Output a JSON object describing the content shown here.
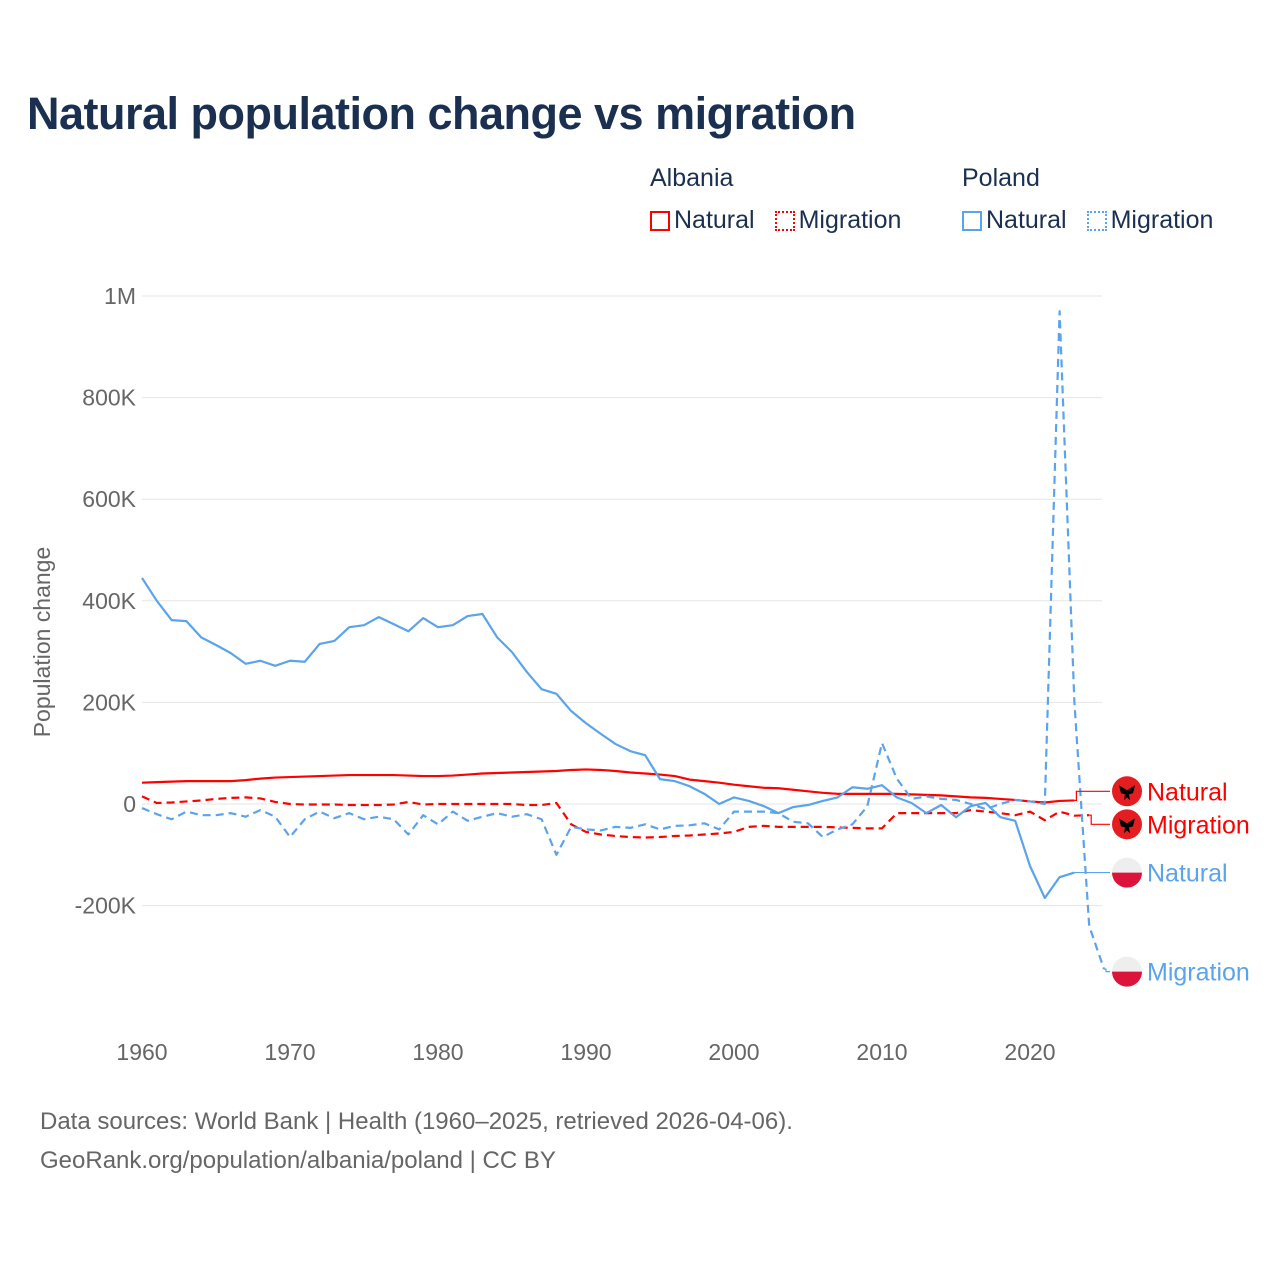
{
  "title": "Natural population change vs migration",
  "legend": {
    "groups": [
      {
        "name": "Albania",
        "color": "#ff0000",
        "items": [
          {
            "label": "Natural",
            "style": "solid"
          },
          {
            "label": "Migration",
            "style": "dotted"
          }
        ]
      },
      {
        "name": "Poland",
        "color": "#5ba3ea",
        "items": [
          {
            "label": "Natural",
            "style": "solid"
          },
          {
            "label": "Migration",
            "style": "dotted"
          }
        ]
      }
    ]
  },
  "chart_data": {
    "type": "line",
    "title": "Natural population change vs migration",
    "ylabel": "Population change",
    "xlabel": "",
    "xlim": [
      1960,
      2025
    ],
    "ylim": [
      -400000,
      1000000
    ],
    "x_ticks": [
      1960,
      1970,
      1980,
      1990,
      2000,
      2010,
      2020
    ],
    "y_ticks": [
      {
        "v": 1000000,
        "label": "1M"
      },
      {
        "v": 800000,
        "label": "800K"
      },
      {
        "v": 600000,
        "label": "600K"
      },
      {
        "v": 400000,
        "label": "400K"
      },
      {
        "v": 200000,
        "label": "200K"
      },
      {
        "v": 0,
        "label": "0"
      },
      {
        "v": -200000,
        "label": "-200K"
      }
    ],
    "grid": true,
    "series": [
      {
        "name": "Albania Natural",
        "label": "Natural",
        "country": "Albania",
        "color": "#ff0000",
        "dash": false,
        "start": 1960,
        "units": "thousands",
        "values": [
          42,
          43,
          44,
          45,
          45,
          45,
          45,
          47,
          50,
          52,
          53,
          54,
          55,
          56,
          57,
          57,
          57,
          57,
          56,
          55,
          55,
          56,
          58,
          60,
          61,
          62,
          63,
          64,
          65,
          67,
          68,
          67,
          65,
          62,
          60,
          58,
          55,
          48,
          45,
          42,
          38,
          35,
          32,
          31,
          28,
          25,
          22,
          20,
          20,
          20,
          20,
          20,
          19,
          18,
          17,
          15,
          13,
          12,
          10,
          8,
          5,
          3,
          6,
          7
        ]
      },
      {
        "name": "Albania Migration",
        "label": "Migration",
        "country": "Albania",
        "color": "#ff0000",
        "dash": true,
        "start": 1960,
        "units": "thousands",
        "values": [
          15,
          2,
          3,
          5,
          7,
          10,
          12,
          13,
          11,
          4,
          0,
          -1,
          -1,
          -1,
          -2,
          -2,
          -2,
          -1,
          4,
          -1,
          0,
          0,
          0,
          0,
          0,
          0,
          -2,
          -2,
          2,
          -40,
          -55,
          -60,
          -63,
          -65,
          -66,
          -65,
          -63,
          -62,
          -60,
          -58,
          -55,
          -45,
          -43,
          -45,
          -45,
          -45,
          -45,
          -46,
          -47,
          -48,
          -48,
          -18,
          -18,
          -18,
          -18,
          -18,
          -12,
          -15,
          -18,
          -22,
          -15,
          -32,
          -15,
          -23,
          -22
        ]
      },
      {
        "name": "Poland Natural",
        "label": "Natural",
        "country": "Poland",
        "color": "#5ba3ea",
        "dash": false,
        "start": 1960,
        "units": "thousands",
        "values": [
          445,
          400,
          362,
          360,
          328,
          313,
          297,
          276,
          282,
          272,
          282,
          280,
          315,
          321,
          348,
          352,
          368,
          354,
          340,
          366,
          348,
          352,
          370,
          374,
          328,
          299,
          260,
          226,
          217,
          183,
          159,
          138,
          118,
          104,
          96,
          49,
          45,
          35,
          20,
          0,
          13,
          6,
          -4,
          -18,
          -6,
          -2,
          6,
          13,
          33,
          30,
          37,
          13,
          2,
          -18,
          -2,
          -26,
          -4,
          2,
          -26,
          -33,
          -122,
          -185,
          -144,
          -135
        ]
      },
      {
        "name": "Poland Migration",
        "label": "Migration",
        "country": "Poland",
        "color": "#5ba3ea",
        "dash": true,
        "start": 1960,
        "units": "thousands",
        "values": [
          -8,
          -20,
          -30,
          -15,
          -22,
          -22,
          -18,
          -25,
          -12,
          -25,
          -65,
          -30,
          -15,
          -28,
          -18,
          -30,
          -25,
          -30,
          -60,
          -22,
          -40,
          -15,
          -33,
          -25,
          -18,
          -25,
          -20,
          -30,
          -100,
          -45,
          -50,
          -52,
          -45,
          -47,
          -40,
          -50,
          -43,
          -42,
          -38,
          -50,
          -15,
          -15,
          -15,
          -18,
          -35,
          -38,
          -65,
          -50,
          -40,
          -5,
          120,
          50,
          10,
          15,
          10,
          8,
          0,
          -10,
          0,
          8,
          5,
          0,
          970,
          200,
          -240,
          -325
        ]
      }
    ],
    "end_labels": [
      {
        "series": 0,
        "text": "Natural",
        "value": 25
      },
      {
        "series": 1,
        "text": "Migration",
        "value": -40
      },
      {
        "series": 2,
        "text": "Natural",
        "value": -135
      },
      {
        "series": 3,
        "text": "Migration",
        "value": -330
      }
    ]
  },
  "footer": {
    "line1": "Data sources: World Bank | Health (1960–2025, retrieved 2026-04-06).",
    "line2": "GeoRank.org/population/albania/poland | CC BY"
  }
}
